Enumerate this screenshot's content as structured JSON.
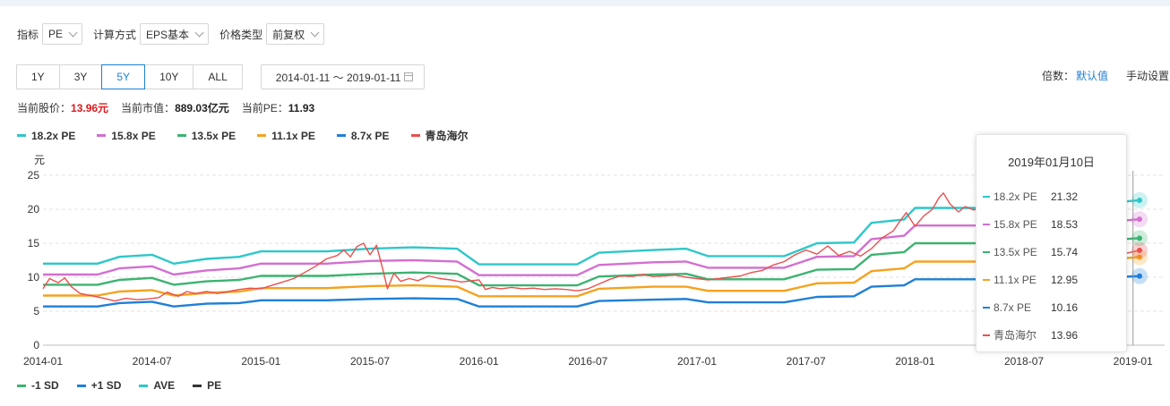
{
  "controls": {
    "indicator_label": "指标",
    "indicator_value": "PE",
    "calc_label": "计算方式",
    "calc_value": "EPS基本",
    "price_label": "价格类型",
    "price_value": "前复权"
  },
  "range_buttons": [
    "1Y",
    "3Y",
    "5Y",
    "10Y",
    "ALL"
  ],
  "active_range": "5Y",
  "date_range": "2014-01-11 ～ 2019-01-11",
  "multiplier": {
    "label": "倍数：",
    "default_link": "默认值",
    "manual_link": "手动设置"
  },
  "info": {
    "price_label": "当前股价：",
    "price_value": "13.96元",
    "mcap_label": "当前市值：",
    "mcap_value": "889.03亿元",
    "pe_label": "当前PE：",
    "pe_value": "11.93"
  },
  "colors": {
    "pe182": "#2ec7c9",
    "pe158": "#d36fd0",
    "pe135": "#3cb371",
    "pe111": "#f5a21e",
    "pe87": "#1f7fd8",
    "price": "#e9504f",
    "minus1sd": "#3cb371",
    "plus1sd": "#1f7fd8",
    "ave": "#2ec7c9",
    "pe": "#333333"
  },
  "legend_bottom": [
    "-1 SD",
    "+1 SD",
    "AVE",
    "PE"
  ],
  "tooltip": {
    "date": "2019年01月10日",
    "rows": [
      {
        "name": "18.2x PE",
        "value": "21.32",
        "color": "#2ec7c9"
      },
      {
        "name": "15.8x PE",
        "value": "18.53",
        "color": "#d36fd0"
      },
      {
        "name": "13.5x PE",
        "value": "15.74",
        "color": "#3cb371"
      },
      {
        "name": "11.1x PE",
        "value": "12.95",
        "color": "#f5a21e"
      },
      {
        "name": "8.7x PE",
        "value": "10.16",
        "color": "#1f7fd8"
      },
      {
        "name": "青岛海尔",
        "value": "13.96",
        "color": "#e9504f"
      }
    ]
  },
  "chart_data": {
    "type": "line",
    "title": "",
    "xlabel": "",
    "ylabel": "元",
    "ylim": [
      0,
      25
    ],
    "yticks": [
      0,
      5,
      10,
      15,
      20,
      25
    ],
    "xticks": [
      "2014-01",
      "2014-07",
      "2015-01",
      "2015-07",
      "2016-01",
      "2016-07",
      "2017-01",
      "2017-07",
      "2018-01",
      "2018-07",
      "2019-01"
    ],
    "grid": true,
    "legend_position": "top-left",
    "series": [
      {
        "name": "18.2x PE",
        "color": "#2ec7c9",
        "points": [
          [
            2014.0,
            12.0
          ],
          [
            2014.25,
            12.0
          ],
          [
            2014.35,
            13.0
          ],
          [
            2014.5,
            13.3
          ],
          [
            2014.6,
            12.0
          ],
          [
            2014.75,
            12.7
          ],
          [
            2014.9,
            13.0
          ],
          [
            2015.0,
            13.8
          ],
          [
            2015.3,
            13.8
          ],
          [
            2015.5,
            14.2
          ],
          [
            2015.7,
            14.4
          ],
          [
            2015.9,
            14.2
          ],
          [
            2016.0,
            11.9
          ],
          [
            2016.45,
            11.9
          ],
          [
            2016.55,
            13.6
          ],
          [
            2016.8,
            14.0
          ],
          [
            2016.95,
            14.2
          ],
          [
            2017.05,
            13.1
          ],
          [
            2017.4,
            13.1
          ],
          [
            2017.55,
            15.0
          ],
          [
            2017.72,
            15.1
          ],
          [
            2017.8,
            18.0
          ],
          [
            2017.95,
            18.5
          ],
          [
            2018.0,
            20.2
          ],
          [
            2018.3,
            20.2
          ],
          [
            2018.6,
            20.3
          ],
          [
            2018.9,
            21.0
          ],
          [
            2019.03,
            21.32
          ]
        ]
      },
      {
        "name": "15.8x PE",
        "color": "#d36fd0",
        "points": [
          [
            2014.0,
            10.4
          ],
          [
            2014.25,
            10.4
          ],
          [
            2014.35,
            11.3
          ],
          [
            2014.5,
            11.6
          ],
          [
            2014.6,
            10.4
          ],
          [
            2014.75,
            11.0
          ],
          [
            2014.9,
            11.3
          ],
          [
            2015.0,
            12.0
          ],
          [
            2015.3,
            12.0
          ],
          [
            2015.5,
            12.4
          ],
          [
            2015.7,
            12.5
          ],
          [
            2015.9,
            12.3
          ],
          [
            2016.0,
            10.3
          ],
          [
            2016.45,
            10.3
          ],
          [
            2016.55,
            11.8
          ],
          [
            2016.8,
            12.2
          ],
          [
            2016.95,
            12.3
          ],
          [
            2017.05,
            11.4
          ],
          [
            2017.4,
            11.4
          ],
          [
            2017.55,
            13.0
          ],
          [
            2017.72,
            13.1
          ],
          [
            2017.8,
            15.6
          ],
          [
            2017.95,
            16.1
          ],
          [
            2018.0,
            17.6
          ],
          [
            2018.3,
            17.6
          ],
          [
            2018.6,
            17.7
          ],
          [
            2018.9,
            18.2
          ],
          [
            2019.03,
            18.53
          ]
        ]
      },
      {
        "name": "13.5x PE",
        "color": "#3cb371",
        "points": [
          [
            2014.0,
            8.9
          ],
          [
            2014.25,
            8.9
          ],
          [
            2014.35,
            9.6
          ],
          [
            2014.5,
            9.9
          ],
          [
            2014.6,
            8.9
          ],
          [
            2014.75,
            9.4
          ],
          [
            2014.9,
            9.6
          ],
          [
            2015.0,
            10.2
          ],
          [
            2015.3,
            10.2
          ],
          [
            2015.5,
            10.5
          ],
          [
            2015.7,
            10.7
          ],
          [
            2015.9,
            10.5
          ],
          [
            2016.0,
            8.8
          ],
          [
            2016.45,
            8.8
          ],
          [
            2016.55,
            10.1
          ],
          [
            2016.8,
            10.4
          ],
          [
            2016.95,
            10.5
          ],
          [
            2017.05,
            9.7
          ],
          [
            2017.4,
            9.7
          ],
          [
            2017.55,
            11.1
          ],
          [
            2017.72,
            11.2
          ],
          [
            2017.8,
            13.3
          ],
          [
            2017.95,
            13.7
          ],
          [
            2018.0,
            15.0
          ],
          [
            2018.3,
            15.0
          ],
          [
            2018.6,
            15.1
          ],
          [
            2018.9,
            15.5
          ],
          [
            2019.03,
            15.74
          ]
        ]
      },
      {
        "name": "11.1x PE",
        "color": "#f5a21e",
        "points": [
          [
            2014.0,
            7.3
          ],
          [
            2014.25,
            7.3
          ],
          [
            2014.35,
            7.9
          ],
          [
            2014.5,
            8.1
          ],
          [
            2014.6,
            7.3
          ],
          [
            2014.75,
            7.7
          ],
          [
            2014.9,
            7.9
          ],
          [
            2015.0,
            8.4
          ],
          [
            2015.3,
            8.4
          ],
          [
            2015.5,
            8.7
          ],
          [
            2015.7,
            8.8
          ],
          [
            2015.9,
            8.6
          ],
          [
            2016.0,
            7.2
          ],
          [
            2016.45,
            7.2
          ],
          [
            2016.55,
            8.3
          ],
          [
            2016.8,
            8.6
          ],
          [
            2016.95,
            8.6
          ],
          [
            2017.05,
            8.0
          ],
          [
            2017.4,
            8.0
          ],
          [
            2017.55,
            9.1
          ],
          [
            2017.72,
            9.2
          ],
          [
            2017.8,
            10.9
          ],
          [
            2017.95,
            11.3
          ],
          [
            2018.0,
            12.3
          ],
          [
            2018.3,
            12.3
          ],
          [
            2018.6,
            12.4
          ],
          [
            2018.9,
            12.7
          ],
          [
            2019.03,
            12.95
          ]
        ]
      },
      {
        "name": "8.7x PE",
        "color": "#1f7fd8",
        "points": [
          [
            2014.0,
            5.7
          ],
          [
            2014.25,
            5.7
          ],
          [
            2014.35,
            6.2
          ],
          [
            2014.5,
            6.4
          ],
          [
            2014.6,
            5.7
          ],
          [
            2014.75,
            6.1
          ],
          [
            2014.9,
            6.2
          ],
          [
            2015.0,
            6.6
          ],
          [
            2015.3,
            6.6
          ],
          [
            2015.5,
            6.8
          ],
          [
            2015.7,
            6.9
          ],
          [
            2015.9,
            6.8
          ],
          [
            2016.0,
            5.7
          ],
          [
            2016.45,
            5.7
          ],
          [
            2016.55,
            6.5
          ],
          [
            2016.8,
            6.7
          ],
          [
            2016.95,
            6.8
          ],
          [
            2017.05,
            6.3
          ],
          [
            2017.4,
            6.3
          ],
          [
            2017.55,
            7.1
          ],
          [
            2017.72,
            7.2
          ],
          [
            2017.8,
            8.6
          ],
          [
            2017.95,
            8.8
          ],
          [
            2018.0,
            9.7
          ],
          [
            2018.3,
            9.7
          ],
          [
            2018.6,
            9.8
          ],
          [
            2018.9,
            10.0
          ],
          [
            2019.03,
            10.16
          ]
        ]
      },
      {
        "name": "青岛海尔",
        "color": "#e9504f",
        "points": [
          [
            2014.0,
            8.3
          ],
          [
            2014.03,
            9.8
          ],
          [
            2014.07,
            9.2
          ],
          [
            2014.1,
            9.9
          ],
          [
            2014.13,
            8.6
          ],
          [
            2014.17,
            7.6
          ],
          [
            2014.22,
            7.3
          ],
          [
            2014.28,
            6.9
          ],
          [
            2014.33,
            6.5
          ],
          [
            2014.38,
            6.9
          ],
          [
            2014.43,
            6.7
          ],
          [
            2014.48,
            6.8
          ],
          [
            2014.53,
            7.0
          ],
          [
            2014.57,
            7.8
          ],
          [
            2014.62,
            7.2
          ],
          [
            2014.66,
            7.9
          ],
          [
            2014.7,
            7.6
          ],
          [
            2014.75,
            7.9
          ],
          [
            2014.8,
            7.6
          ],
          [
            2014.85,
            7.9
          ],
          [
            2014.9,
            8.2
          ],
          [
            2014.95,
            8.4
          ],
          [
            2015.0,
            8.3
          ],
          [
            2015.05,
            8.8
          ],
          [
            2015.1,
            9.3
          ],
          [
            2015.15,
            9.8
          ],
          [
            2015.2,
            10.7
          ],
          [
            2015.25,
            11.6
          ],
          [
            2015.3,
            12.7
          ],
          [
            2015.35,
            13.2
          ],
          [
            2015.38,
            14.0
          ],
          [
            2015.41,
            13.0
          ],
          [
            2015.44,
            14.5
          ],
          [
            2015.47,
            15.0
          ],
          [
            2015.5,
            13.3
          ],
          [
            2015.53,
            14.7
          ],
          [
            2015.56,
            11.0
          ],
          [
            2015.58,
            8.3
          ],
          [
            2015.61,
            10.6
          ],
          [
            2015.64,
            9.4
          ],
          [
            2015.68,
            9.8
          ],
          [
            2015.72,
            9.5
          ],
          [
            2015.77,
            10.2
          ],
          [
            2015.82,
            9.8
          ],
          [
            2015.87,
            9.6
          ],
          [
            2015.92,
            9.3
          ],
          [
            2016.0,
            9.6
          ],
          [
            2016.03,
            8.2
          ],
          [
            2016.06,
            8.5
          ],
          [
            2016.1,
            8.3
          ],
          [
            2016.15,
            8.5
          ],
          [
            2016.2,
            8.3
          ],
          [
            2016.25,
            8.4
          ],
          [
            2016.3,
            8.2
          ],
          [
            2016.35,
            8.3
          ],
          [
            2016.4,
            8.2
          ],
          [
            2016.45,
            8.0
          ],
          [
            2016.5,
            8.3
          ],
          [
            2016.55,
            9.0
          ],
          [
            2016.6,
            9.7
          ],
          [
            2016.65,
            10.2
          ],
          [
            2016.7,
            10.1
          ],
          [
            2016.75,
            10.4
          ],
          [
            2016.8,
            10.1
          ],
          [
            2016.85,
            10.2
          ],
          [
            2016.9,
            10.3
          ],
          [
            2016.95,
            10.0
          ],
          [
            2017.0,
            9.8
          ],
          [
            2017.05,
            9.6
          ],
          [
            2017.1,
            9.8
          ],
          [
            2017.15,
            10.0
          ],
          [
            2017.2,
            10.2
          ],
          [
            2017.25,
            10.7
          ],
          [
            2017.3,
            11.0
          ],
          [
            2017.35,
            11.8
          ],
          [
            2017.4,
            12.3
          ],
          [
            2017.45,
            13.3
          ],
          [
            2017.5,
            14.0
          ],
          [
            2017.55,
            13.4
          ],
          [
            2017.6,
            14.6
          ],
          [
            2017.65,
            13.2
          ],
          [
            2017.7,
            13.8
          ],
          [
            2017.75,
            13.1
          ],
          [
            2017.8,
            14.2
          ],
          [
            2017.85,
            15.8
          ],
          [
            2017.9,
            16.8
          ],
          [
            2017.93,
            18.2
          ],
          [
            2017.96,
            19.5
          ],
          [
            2018.0,
            17.5
          ],
          [
            2018.04,
            19.0
          ],
          [
            2018.08,
            20.0
          ],
          [
            2018.11,
            21.7
          ],
          [
            2018.13,
            22.4
          ],
          [
            2018.16,
            20.8
          ],
          [
            2018.2,
            19.6
          ],
          [
            2018.23,
            20.4
          ],
          [
            2018.27,
            19.9
          ],
          [
            2018.3,
            20.3
          ],
          [
            2018.34,
            18.8
          ],
          [
            2018.37,
            17.2
          ],
          [
            2018.4,
            17.8
          ],
          [
            2018.45,
            16.9
          ],
          [
            2018.5,
            17.3
          ],
          [
            2018.55,
            16.5
          ],
          [
            2018.6,
            17.8
          ],
          [
            2018.63,
            20.8
          ],
          [
            2018.66,
            18.3
          ],
          [
            2018.7,
            16.3
          ],
          [
            2018.75,
            15.5
          ],
          [
            2018.8,
            14.9
          ],
          [
            2018.85,
            14.3
          ],
          [
            2018.9,
            14.0
          ],
          [
            2018.95,
            13.4
          ],
          [
            2019.03,
            13.96
          ]
        ]
      }
    ]
  }
}
